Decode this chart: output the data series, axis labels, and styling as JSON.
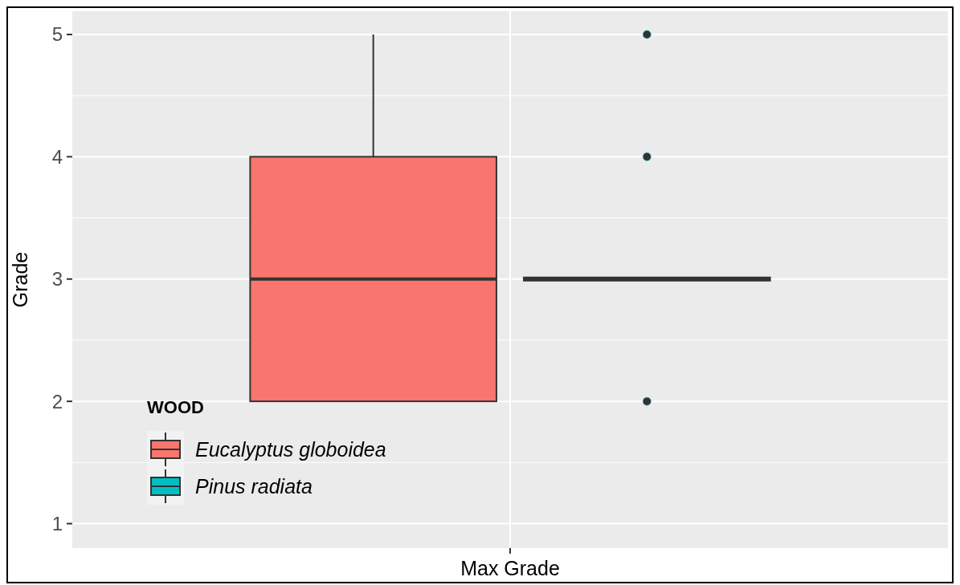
{
  "chart_data": {
    "type": "box",
    "categories": [
      "Max Grade"
    ],
    "ylabel": "Grade",
    "ylim": [
      0.8,
      5.19
    ],
    "yticks": [
      1,
      2,
      3,
      4,
      5
    ],
    "grid": true,
    "legend": "bottom left",
    "legend_title": "WOOD",
    "series": [
      {
        "name": "Eucalyptus globoidea",
        "color": "#f8766d",
        "boxes": [
          {
            "low": 2,
            "q1": 2,
            "median": 3,
            "q3": 4,
            "high": 5
          }
        ]
      },
      {
        "name": "Pinus radiata",
        "color": "#00bfc4",
        "boxes": [
          {
            "low": 3,
            "q1": 3,
            "median": 3,
            "q3": 3,
            "high": 3,
            "outliers": [
              2,
              4,
              5
            ]
          }
        ]
      }
    ]
  }
}
